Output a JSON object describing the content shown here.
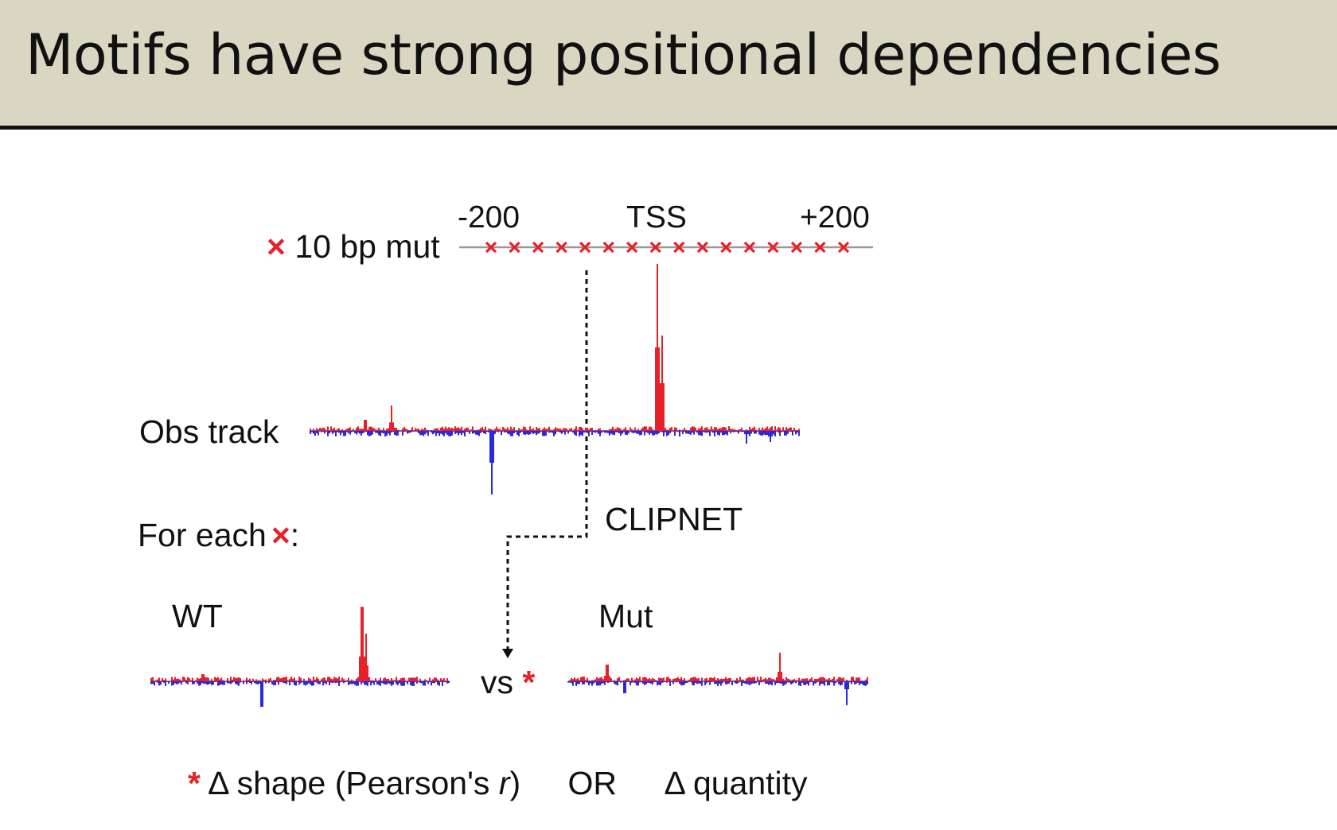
{
  "title": "Motifs have strong positional dependencies",
  "axis": {
    "left": "-200",
    "center": "TSS",
    "right": "+200"
  },
  "mut_label": "10 bp mut",
  "mut_marker": "×",
  "mut_count": 16,
  "obs_label": "Obs track",
  "for_each_label": "For each",
  "for_each_colon": ":",
  "clipnet_label": "CLIPNET",
  "wt_label": "WT",
  "mut_track_label": "Mut",
  "vs_label": "vs",
  "star": "*",
  "footer": {
    "shape": "Δ shape (Pearson's ",
    "r": "r",
    "close": ")",
    "or": "OR",
    "quantity": "Δ quantity"
  },
  "colors": {
    "plus_strand": "#e8202a",
    "minus_strand": "#2a2ad8",
    "header_bg": "#d9d7c1"
  }
}
